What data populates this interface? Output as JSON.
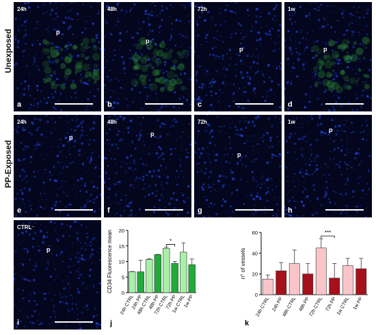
{
  "row_labels": {
    "top": "Unexposed",
    "bottom": "PP-Exposed"
  },
  "panels": [
    {
      "id": "a",
      "time": "24h",
      "marker": "p"
    },
    {
      "id": "b",
      "time": "48h",
      "marker": "p"
    },
    {
      "id": "c",
      "time": "72h",
      "marker": "p"
    },
    {
      "id": "d",
      "time": "1w",
      "marker": "p"
    },
    {
      "id": "e",
      "time": "24h",
      "marker": "p"
    },
    {
      "id": "f",
      "time": "48h",
      "marker": "p"
    },
    {
      "id": "g",
      "time": "72h",
      "marker": "p"
    },
    {
      "id": "h",
      "time": "1w",
      "marker": "p"
    },
    {
      "id": "i",
      "time": "CTRL⁻",
      "marker": "p"
    }
  ],
  "colors": {
    "ctrl_green": "#a8f0a8",
    "pp_green": "#22aa3a",
    "ctrl_red": "#f9c5c9",
    "pp_red": "#a5101a",
    "background": "#03061c",
    "nuclei": "#1f3fd4",
    "signal": "#2e8a2e"
  },
  "chart_data": [
    {
      "panel": "j",
      "type": "bar",
      "ylabel": "CD34 Fluorescence mean",
      "ylim": [
        0,
        20
      ],
      "yticks": [
        0,
        5,
        10,
        15,
        20
      ],
      "categories": [
        "24h CTRL",
        "24h PP",
        "48h CTRL",
        "48h PP",
        "72h CTRL",
        "72h PP",
        "1w CTRL",
        "1w PP"
      ],
      "values": [
        6.7,
        6.7,
        10.7,
        12.2,
        14.2,
        9.4,
        13.0,
        9.0
      ],
      "errors": [
        0.1,
        3.7,
        0.2,
        0.1,
        0.4,
        0.6,
        3.0,
        1.8
      ],
      "significance": {
        "between": [
          4,
          5
        ],
        "label": "*"
      }
    },
    {
      "panel": "k",
      "type": "bar",
      "ylabel": "n° of vessels",
      "ylim": [
        0,
        60
      ],
      "yticks": [
        0,
        20,
        40,
        60
      ],
      "categories": [
        "24h CTRL",
        "24h PP",
        "48h CTRL",
        "48h PP",
        "72h CTRL",
        "72h PP",
        "1w CTRL",
        "1w PP"
      ],
      "values": [
        15,
        23,
        30,
        20,
        45,
        16,
        28,
        25
      ],
      "errors": [
        4,
        8,
        13,
        10,
        9,
        14,
        7,
        10
      ],
      "significance": {
        "between": [
          4,
          5
        ],
        "label": "***"
      }
    }
  ]
}
